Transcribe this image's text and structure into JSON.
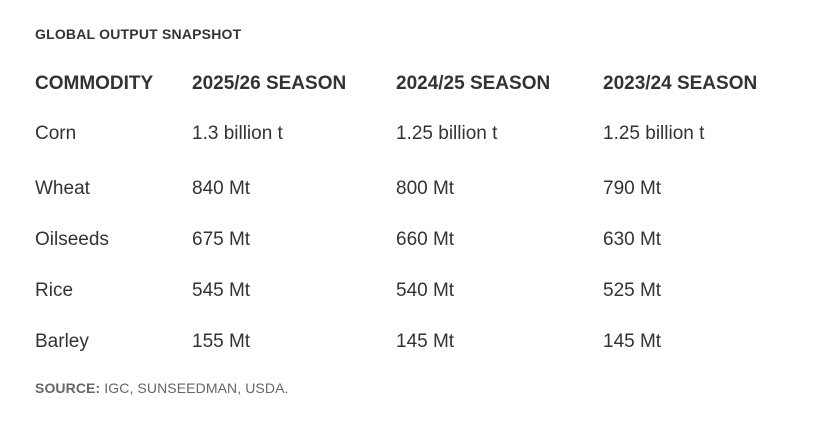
{
  "header": {
    "eyebrow": "GLOBAL OUTPUT SNAPSHOT"
  },
  "table": {
    "columns": [
      "COMMODITY",
      "2025/26 SEASON",
      "2024/25 SEASON",
      "2023/24 SEASON"
    ],
    "rows": [
      [
        "Corn",
        "1.3 billion t",
        "1.25 billion t",
        "1.25 billion t"
      ],
      [
        "Wheat",
        "840 Mt",
        "800 Mt",
        "790 Mt"
      ],
      [
        "Oilseeds",
        "675 Mt",
        "660 Mt",
        "630 Mt"
      ],
      [
        "Rice",
        "545 Mt",
        "540 Mt",
        "525 Mt"
      ],
      [
        "Barley",
        "155 Mt",
        "145 Mt",
        "145 Mt"
      ]
    ]
  },
  "footer": {
    "source_label": "SOURCE:",
    "source_text": "IGC, SUNSEEDMAN, USDA."
  }
}
